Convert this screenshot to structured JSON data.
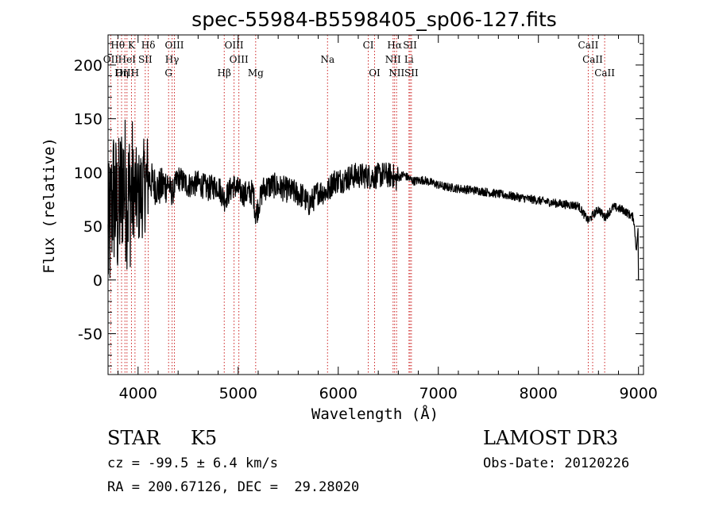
{
  "chart_data": {
    "type": "line",
    "title": "spec-55984-B5598405_sp06-127.fits",
    "xlabel": "Wavelength (Å)",
    "ylabel": "Flux (relative)",
    "xlim": [
      3700,
      9050
    ],
    "ylim": [
      -88,
      228
    ],
    "xticks": [
      4000,
      5000,
      6000,
      7000,
      8000,
      9000
    ],
    "yticks": [
      -50,
      0,
      50,
      100,
      150,
      200
    ],
    "series": [
      {
        "name": "flux",
        "description": "anchor points of the continuum envelope traced from the plot",
        "x": [
          3700,
          3750,
          3800,
          3850,
          3900,
          3950,
          4000,
          4050,
          4100,
          4150,
          4200,
          4300,
          4340,
          4400,
          4500,
          4600,
          4700,
          4800,
          4861,
          4950,
          5050,
          5150,
          5175,
          5250,
          5350,
          5450,
          5550,
          5650,
          5700,
          5750,
          5800,
          5893,
          5950,
          6050,
          6150,
          6250,
          6350,
          6450,
          6550,
          6563,
          6650,
          6750,
          6850,
          6950,
          7050,
          7200,
          7400,
          7600,
          7800,
          8000,
          8200,
          8400,
          8498,
          8542,
          8600,
          8662,
          8750,
          8850,
          8950,
          9000
        ],
        "y": [
          30,
          80,
          60,
          95,
          75,
          85,
          75,
          85,
          95,
          90,
          85,
          90,
          80,
          95,
          88,
          90,
          85,
          88,
          75,
          88,
          80,
          82,
          60,
          85,
          88,
          85,
          82,
          78,
          70,
          75,
          82,
          82,
          92,
          93,
          97,
          97,
          96,
          98,
          97,
          93,
          98,
          92,
          93,
          90,
          87,
          85,
          83,
          80,
          77,
          74,
          71,
          69,
          55,
          60,
          66,
          58,
          68,
          65,
          58,
          8
        ]
      }
    ],
    "lines": [
      {
        "name": "Hθ",
        "wave": 3797,
        "row": 1
      },
      {
        "name": "K",
        "wave": 3934,
        "row": 1
      },
      {
        "name": "Hδ",
        "wave": 4102,
        "row": 1
      },
      {
        "name": "OIII",
        "wave": 4363,
        "row": 1
      },
      {
        "name": "OIII",
        "wave": 4959,
        "row": 1
      },
      {
        "name": "CI",
        "wave": 6300,
        "row": 1
      },
      {
        "name": "Hα",
        "wave": 6563,
        "row": 1
      },
      {
        "name": "SII",
        "wave": 6717,
        "row": 1
      },
      {
        "name": "CaII",
        "wave": 8498,
        "row": 1
      },
      {
        "name": "OII",
        "wave": 3727,
        "row": 2
      },
      {
        "name": "HeI",
        "wave": 3889,
        "row": 2
      },
      {
        "name": "SII",
        "wave": 4072,
        "row": 2
      },
      {
        "name": "Hγ",
        "wave": 4340,
        "row": 2
      },
      {
        "name": "OIII",
        "wave": 5007,
        "row": 2
      },
      {
        "name": "Na",
        "wave": 5893,
        "row": 2
      },
      {
        "name": "NII",
        "wave": 6548,
        "row": 2
      },
      {
        "name": "Li",
        "wave": 6707,
        "row": 2
      },
      {
        "name": "CaII",
        "wave": 8542,
        "row": 2
      },
      {
        "name": "OIII",
        "wave": 3869,
        "row": 3
      },
      {
        "name": "Hη",
        "wave": 3835,
        "row": 3
      },
      {
        "name": "H",
        "wave": 3969,
        "row": 3
      },
      {
        "name": "G",
        "wave": 4305,
        "row": 3
      },
      {
        "name": "Hβ",
        "wave": 4861,
        "row": 3
      },
      {
        "name": "Mg",
        "wave": 5175,
        "row": 3
      },
      {
        "name": "OI",
        "wave": 6363,
        "row": 3
      },
      {
        "name": "NII",
        "wave": 6583,
        "row": 3
      },
      {
        "name": "SII",
        "wave": 6731,
        "row": 3
      },
      {
        "name": "CaII",
        "wave": 8662,
        "row": 3
      }
    ]
  },
  "info": {
    "class": "STAR",
    "subclass": "K5",
    "survey": "LAMOST DR3",
    "cz": "cz = -99.5 ± 6.4 km/s",
    "obs_date": "Obs-Date: 20120226",
    "coords": "RA = 200.67126, DEC =  29.28020"
  },
  "colors": {
    "line": "#000000",
    "marker": "#cc2222",
    "background": "#ffffff"
  }
}
